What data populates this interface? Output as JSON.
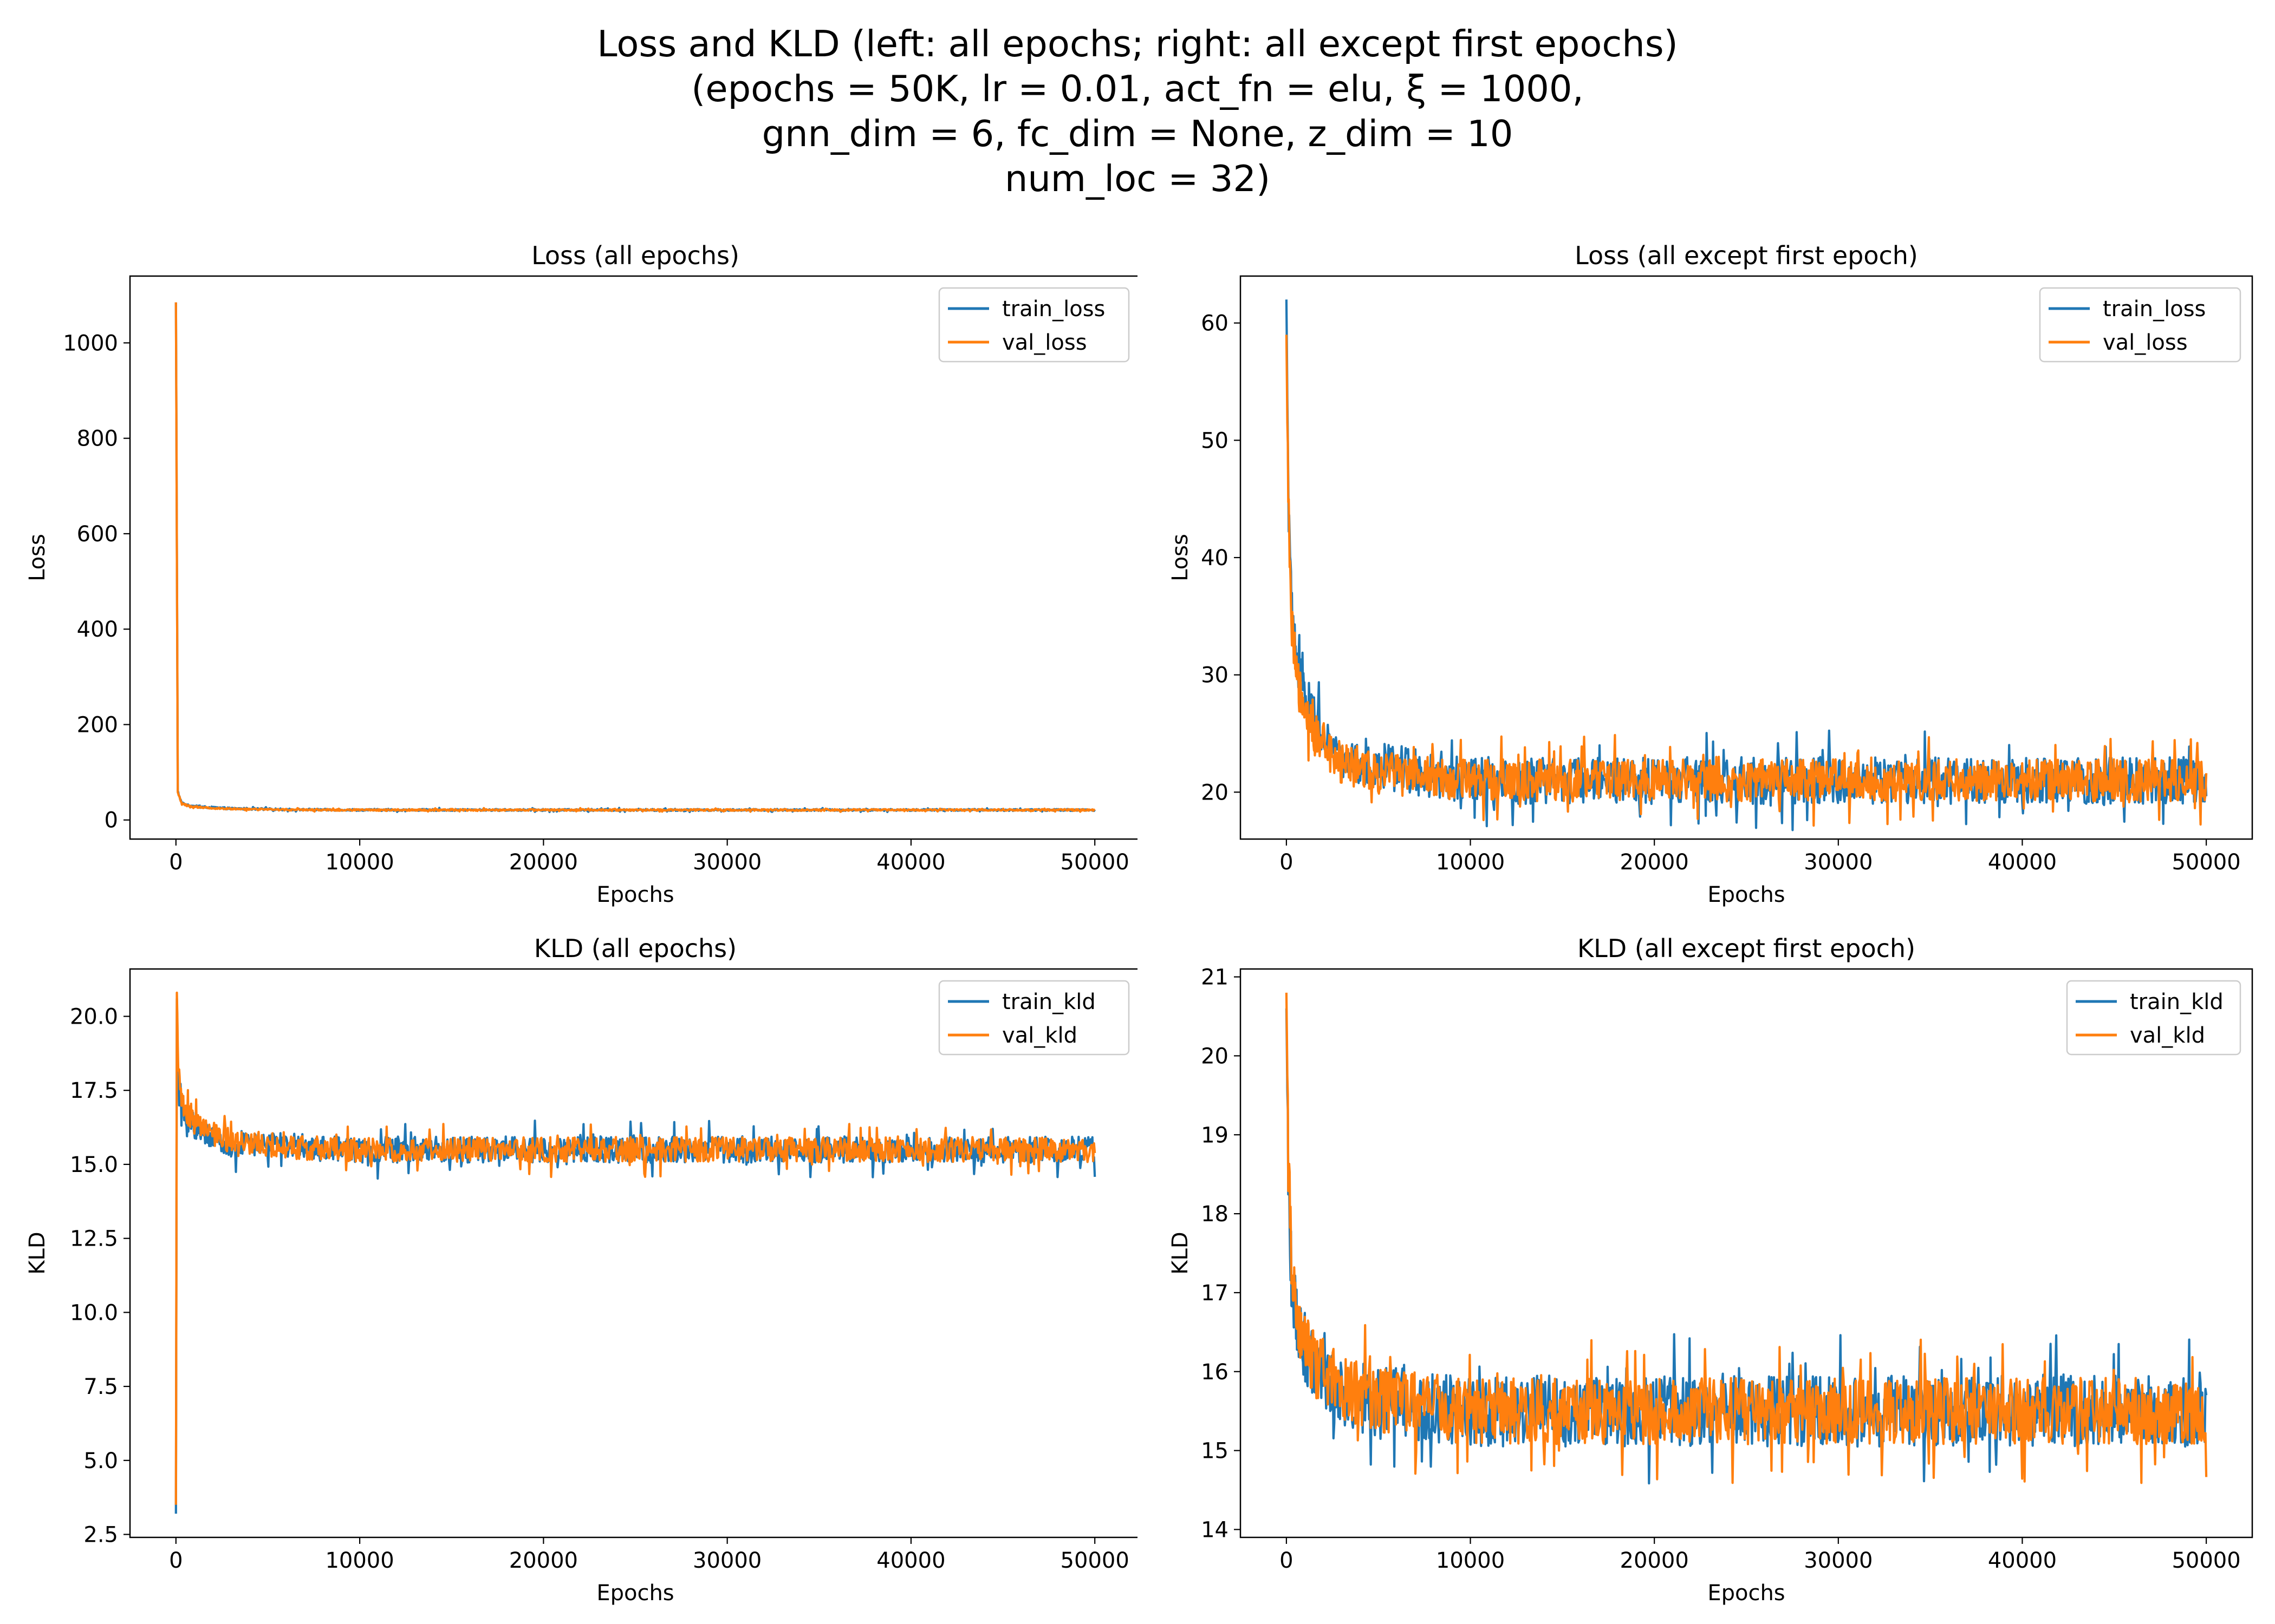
{
  "figure": {
    "title_lines": [
      "Loss and KLD (left: all epochs; right: all except first epochs)",
      "(epochs = 50K, lr = 0.01, act_fn = elu, ξ = 1000,",
      "gnn_dim = 6,  fc_dim = None,  z_dim = 10",
      "num_loc = 32)"
    ]
  },
  "colors": {
    "train": "#1f77b4",
    "val": "#ff7f0e",
    "axis": "#000000",
    "background": "#ffffff"
  },
  "chart_data": [
    {
      "type": "line",
      "title": "Loss (all epochs)",
      "xlabel": "Epochs",
      "ylabel": "Loss",
      "xlim": [
        -2500,
        52500
      ],
      "ylim": [
        -40,
        1140
      ],
      "xticks": [
        0,
        10000,
        20000,
        30000,
        40000,
        50000
      ],
      "yticks": [
        0,
        200,
        400,
        600,
        800,
        1000
      ],
      "grid": false,
      "legend_position": "top-right",
      "series": [
        {
          "name": "train_loss",
          "color": "#1f77b4",
          "x": [
            0,
            100,
            300,
            700,
            1500,
            3000,
            6000,
            10000,
            20000,
            30000,
            40000,
            50000
          ],
          "values": [
            1085,
            60,
            36,
            30,
            27,
            24,
            22,
            21,
            21,
            21,
            21,
            21
          ],
          "noise": 2.0
        },
        {
          "name": "val_loss",
          "color": "#ff7f0e",
          "x": [
            0,
            100,
            300,
            700,
            1500,
            3000,
            6000,
            10000,
            20000,
            30000,
            40000,
            50000
          ],
          "values": [
            1085,
            58,
            35,
            29,
            26,
            23,
            21.5,
            21,
            21,
            21,
            21,
            21
          ],
          "noise": 1.8
        }
      ]
    },
    {
      "type": "line",
      "title": "Loss (all except first epoch)",
      "xlabel": "Epochs",
      "ylabel": "Loss",
      "xlim": [
        -2500,
        52500
      ],
      "ylim": [
        16,
        64
      ],
      "xticks": [
        0,
        10000,
        20000,
        30000,
        40000,
        50000
      ],
      "yticks": [
        20,
        30,
        40,
        50,
        60
      ],
      "grid": false,
      "legend_position": "top-right",
      "series": [
        {
          "name": "train_loss",
          "color": "#1f77b4",
          "x": [
            0,
            100,
            300,
            700,
            1500,
            3000,
            6000,
            10000,
            20000,
            30000,
            40000,
            50000
          ],
          "values": [
            62,
            45,
            35,
            30,
            26,
            23,
            22,
            21,
            21,
            21,
            21,
            21
          ],
          "noise": 2.0
        },
        {
          "name": "val_loss",
          "color": "#ff7f0e",
          "x": [
            0,
            100,
            300,
            700,
            1500,
            3000,
            6000,
            10000,
            20000,
            30000,
            40000,
            50000
          ],
          "values": [
            59,
            44,
            34,
            29,
            25,
            22.5,
            21.5,
            21,
            21,
            21,
            21,
            21
          ],
          "noise": 1.8
        }
      ]
    },
    {
      "type": "line",
      "title": "KLD (all epochs)",
      "xlabel": "Epochs",
      "ylabel": "KLD",
      "xlim": [
        -2500,
        52500
      ],
      "ylim": [
        2.4,
        21.6
      ],
      "xticks": [
        0,
        10000,
        20000,
        30000,
        40000,
        50000
      ],
      "yticks": [
        2.5,
        5.0,
        7.5,
        10.0,
        12.5,
        15.0,
        17.5,
        20.0
      ],
      "grid": false,
      "legend_position": "top-right",
      "series": [
        {
          "name": "train_kld",
          "color": "#1f77b4",
          "x": [
            0,
            50,
            100,
            300,
            700,
            1500,
            3000,
            6000,
            10000,
            20000,
            30000,
            40000,
            50000
          ],
          "values": [
            3.2,
            20.6,
            18.5,
            17.0,
            16.5,
            16.0,
            15.7,
            15.6,
            15.5,
            15.5,
            15.5,
            15.5,
            15.5
          ],
          "noise": 0.45
        },
        {
          "name": "val_kld",
          "color": "#ff7f0e",
          "x": [
            0,
            50,
            100,
            300,
            700,
            1500,
            3000,
            6000,
            10000,
            20000,
            30000,
            40000,
            50000
          ],
          "values": [
            3.5,
            20.8,
            18.7,
            17.2,
            16.6,
            16.1,
            15.8,
            15.6,
            15.5,
            15.5,
            15.5,
            15.5,
            15.5
          ],
          "noise": 0.42
        }
      ]
    },
    {
      "type": "line",
      "title": "KLD (all except first epoch)",
      "xlabel": "Epochs",
      "ylabel": "KLD",
      "xlim": [
        -2500,
        52500
      ],
      "ylim": [
        13.9,
        21.1
      ],
      "xticks": [
        0,
        10000,
        20000,
        30000,
        40000,
        50000
      ],
      "yticks": [
        14,
        15,
        16,
        17,
        18,
        19,
        20,
        21
      ],
      "grid": false,
      "legend_position": "top-right",
      "series": [
        {
          "name": "train_kld",
          "color": "#1f77b4",
          "x": [
            0,
            100,
            300,
            700,
            1500,
            3000,
            6000,
            10000,
            20000,
            30000,
            40000,
            50000
          ],
          "values": [
            20.6,
            18.5,
            17.0,
            16.5,
            16.0,
            15.7,
            15.6,
            15.5,
            15.5,
            15.5,
            15.5,
            15.5
          ],
          "noise": 0.45
        },
        {
          "name": "val_kld",
          "color": "#ff7f0e",
          "x": [
            0,
            100,
            300,
            700,
            1500,
            3000,
            6000,
            10000,
            20000,
            30000,
            40000,
            50000
          ],
          "values": [
            20.8,
            18.7,
            17.2,
            16.6,
            16.1,
            15.8,
            15.6,
            15.5,
            15.5,
            15.5,
            15.5,
            15.5
          ],
          "noise": 0.42
        }
      ]
    }
  ]
}
